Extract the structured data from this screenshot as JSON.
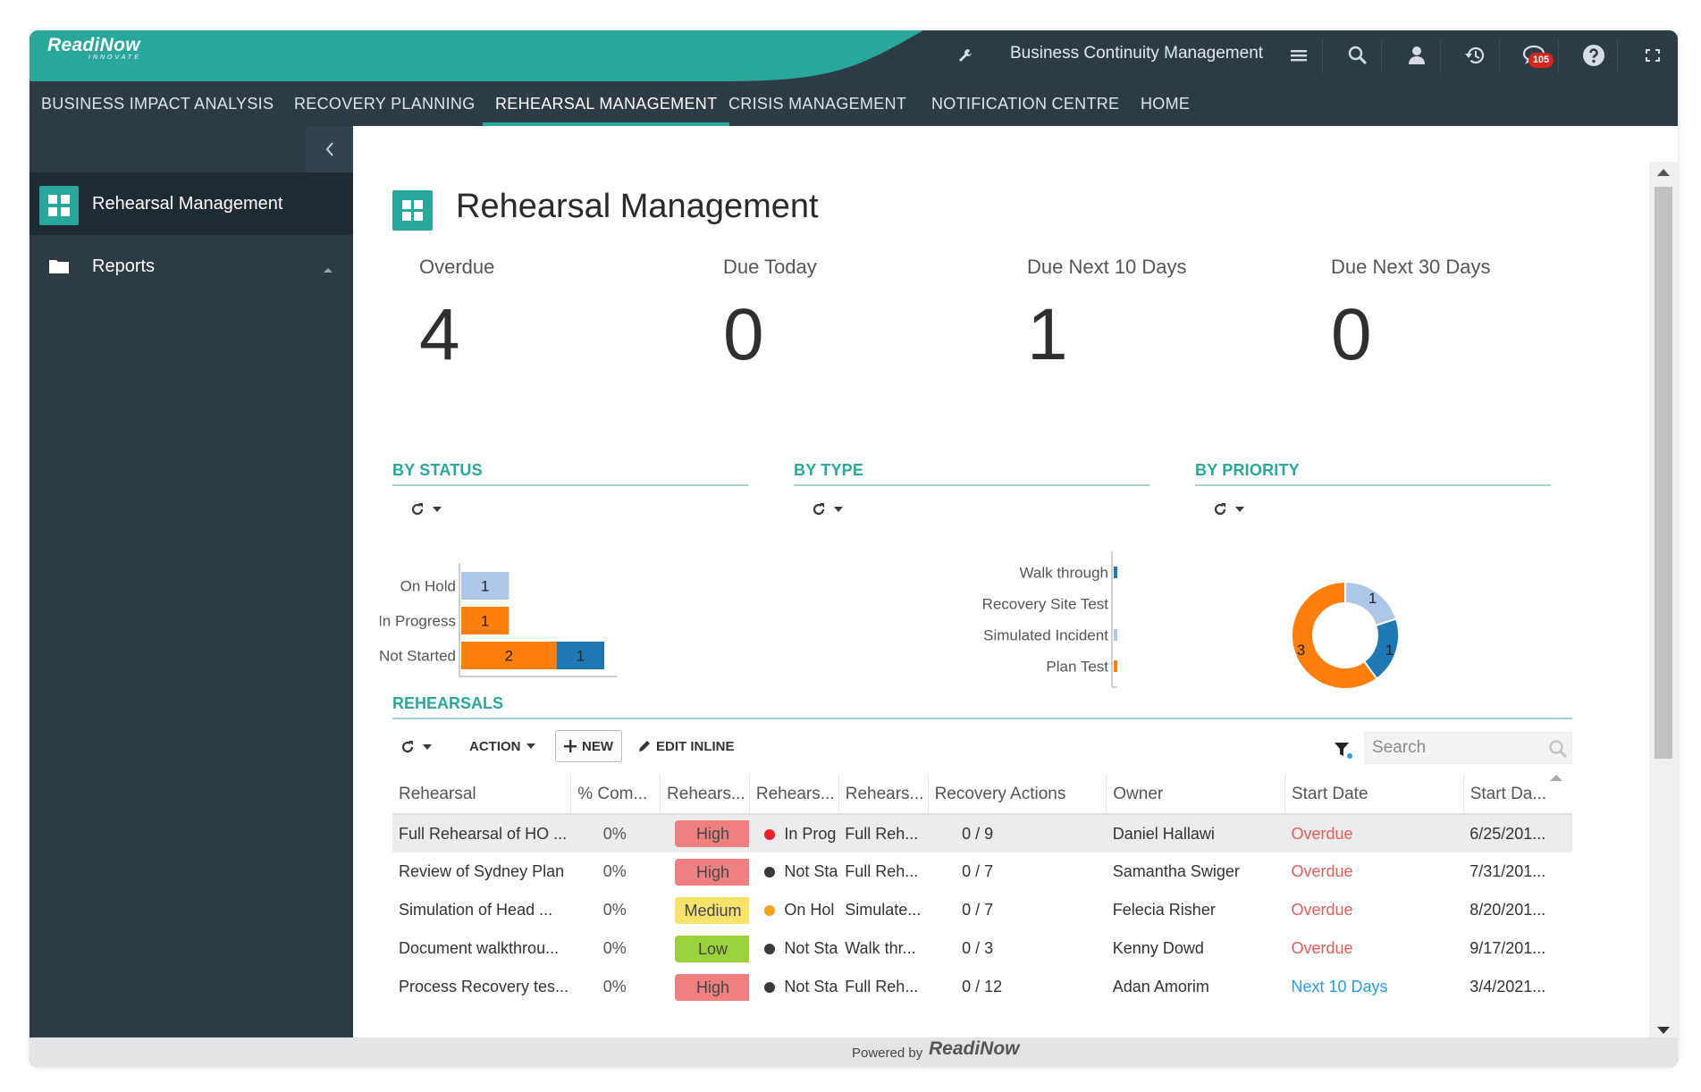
{
  "brand": {
    "name": "ReadiNow",
    "tagline": "INNOVATE"
  },
  "header": {
    "app_name": "Business Continuity Management",
    "notification_count": "105",
    "colors": {
      "accent": "#2aa79b",
      "chrome": "#2c3b44"
    }
  },
  "nav": {
    "items": [
      {
        "label": "BUSINESS IMPACT ANALYSIS"
      },
      {
        "label": "RECOVERY PLANNING"
      },
      {
        "label": "REHEARSAL MANAGEMENT"
      },
      {
        "label": "CRISIS MANAGEMENT"
      },
      {
        "label": "NOTIFICATION CENTRE"
      },
      {
        "label": "HOME"
      }
    ],
    "active": "REHEARSAL MANAGEMENT"
  },
  "sidebar": {
    "items": [
      {
        "label": "Rehearsal Management"
      },
      {
        "label": "Reports"
      }
    ]
  },
  "page": {
    "title": "Rehearsal Management"
  },
  "stats": [
    {
      "label": "Overdue",
      "value": "4"
    },
    {
      "label": "Due Today",
      "value": "0"
    },
    {
      "label": "Due Next 10 Days",
      "value": "1"
    },
    {
      "label": "Due Next 30 Days",
      "value": "0"
    }
  ],
  "sections": {
    "by_status": "BY STATUS",
    "by_type": "BY TYPE",
    "by_priority": "BY PRIORITY",
    "rehearsals": "REHEARSALS"
  },
  "chart_data": [
    {
      "type": "bar",
      "title": "BY STATUS",
      "orientation": "horizontal",
      "stacked": true,
      "categories": [
        "On Hold",
        "In Progress",
        "Not Started"
      ],
      "series": [
        {
          "color": "#aec7e8",
          "values": [
            1,
            0,
            0
          ]
        },
        {
          "color": "#ff7f0e",
          "values": [
            0,
            1,
            2
          ]
        },
        {
          "color": "#1f77b4",
          "values": [
            0,
            0,
            1
          ]
        }
      ],
      "grid": false
    },
    {
      "type": "bar",
      "title": "BY TYPE",
      "orientation": "horizontal",
      "stacked": true,
      "categories": [
        "Walk through",
        "Recovery Site Test",
        "Simulated Incident",
        "Plan Test"
      ],
      "series": [
        {
          "color": "#1f77b4",
          "values": [
            1,
            0,
            0,
            0
          ]
        },
        {
          "color": "#aec7e8",
          "values": [
            0,
            0,
            1,
            0
          ]
        },
        {
          "color": "#ff7f0e",
          "values": [
            0,
            0,
            0,
            3
          ]
        }
      ],
      "grid": false
    },
    {
      "type": "pie",
      "title": "BY PRIORITY",
      "donut": true,
      "slices": [
        {
          "value": 1,
          "color": "#aec7e8"
        },
        {
          "value": 1,
          "color": "#1f77b4"
        },
        {
          "value": 3,
          "color": "#ff7f0e"
        }
      ]
    }
  ],
  "toolbar": {
    "action_label": "ACTION",
    "new_label": "NEW",
    "edit_inline_label": "EDIT INLINE",
    "search_placeholder": "Search"
  },
  "grid": {
    "columns": [
      "Rehearsal",
      "% Com...",
      "Rehears...",
      "Rehears...",
      "Rehears...",
      "Recovery Actions",
      "Owner",
      "Start Date",
      "Start Da..."
    ],
    "rows": [
      {
        "name": "Full Rehearsal of HO ...",
        "pct": "0%",
        "priority": "High",
        "priority_color": "#f08080",
        "status_color": "#e8202a",
        "status": "In Prog",
        "type": "Full Reh...",
        "actions": "0 / 9",
        "owner": "Daniel Hallawi",
        "start_date": "Overdue",
        "start_date_kind": "overdue",
        "start_da": "6/25/201..."
      },
      {
        "name": "Review of Sydney Plan",
        "pct": "0%",
        "priority": "High",
        "priority_color": "#f08080",
        "status_color": "#3a3a3a",
        "status": "Not Sta",
        "type": "Full Reh...",
        "actions": "0 / 7",
        "owner": "Samantha Swiger",
        "start_date": "Overdue",
        "start_date_kind": "overdue",
        "start_da": "7/31/201..."
      },
      {
        "name": "Simulation of Head ...",
        "pct": "0%",
        "priority": "Medium",
        "priority_color": "#f7e26b",
        "status_color": "#f4a21a",
        "status": "On Hol",
        "type": "Simulate...",
        "actions": "0 / 7",
        "owner": "Felecia Risher",
        "start_date": "Overdue",
        "start_date_kind": "overdue",
        "start_da": "8/20/201..."
      },
      {
        "name": "Document walkthrou...",
        "pct": "0%",
        "priority": "Low",
        "priority_color": "#9bd23c",
        "status_color": "#3a3a3a",
        "status": "Not Sta",
        "type": "Walk thr...",
        "actions": "0 / 3",
        "owner": "Kenny Dowd",
        "start_date": "Overdue",
        "start_date_kind": "overdue",
        "start_da": "9/17/201..."
      },
      {
        "name": "Process Recovery tes...",
        "pct": "0%",
        "priority": "High",
        "priority_color": "#f08080",
        "status_color": "#3a3a3a",
        "status": "Not Sta",
        "type": "Full Reh...",
        "actions": "0 / 12",
        "owner": "Adan Amorim",
        "start_date": "Next 10 Days",
        "start_date_kind": "next",
        "start_da": "3/4/2021..."
      }
    ]
  },
  "footer": {
    "powered_by": "Powered by",
    "brand": "ReadiNow"
  }
}
